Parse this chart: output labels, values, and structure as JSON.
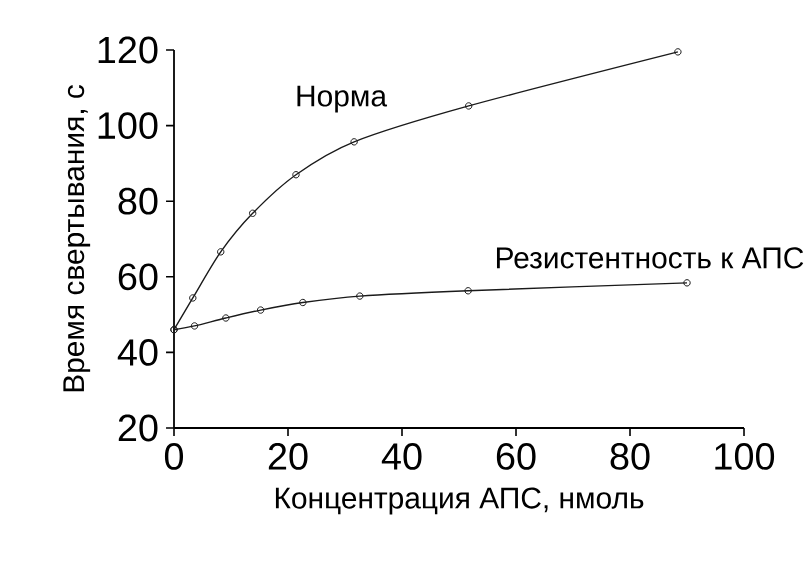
{
  "chart_data": {
    "type": "line",
    "xlabel": "Концентрация АПС, нмоль",
    "ylabel": "Время свертывания, с",
    "xlim": [
      0,
      100
    ],
    "ylim": [
      20,
      120
    ],
    "xticks": [
      0,
      20,
      40,
      60,
      80,
      100
    ],
    "yticks": [
      20,
      40,
      60,
      80,
      100,
      120
    ],
    "marker": "circle",
    "line_style": "solid",
    "grid": false,
    "legend": false,
    "series": [
      {
        "name": "Норма",
        "color": "#1a1a1a",
        "x": [
          0,
          3.3,
          8.2,
          13.8,
          21.4,
          31.6,
          51.7,
          88.4
        ],
        "values": [
          46,
          54.4,
          66.6,
          76.8,
          87,
          95.7,
          105.2,
          119.5
        ]
      },
      {
        "name": "Резистентность к АПС",
        "color": "#1a1a1a",
        "x": [
          0,
          3.6,
          9.1,
          15.2,
          22.6,
          32.6,
          51.6,
          90
        ],
        "values": [
          46,
          47,
          49.1,
          51.2,
          53.2,
          54.9,
          56.3,
          58.4
        ]
      }
    ]
  }
}
